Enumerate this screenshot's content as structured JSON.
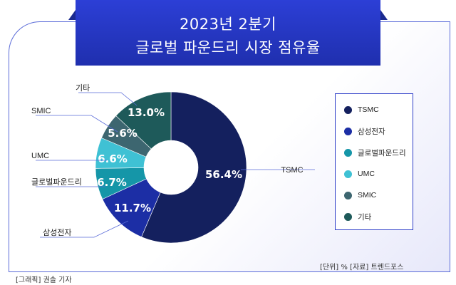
{
  "header": {
    "title_line1": "2023년 2분기",
    "title_line2": "글로벌 파운드리 시장 점유율"
  },
  "chart_data": {
    "type": "pie",
    "categories": [
      "TSMC",
      "삼성전자",
      "글로벌파운드리",
      "UMC",
      "SMIC",
      "기타"
    ],
    "values": [
      56.4,
      11.7,
      6.7,
      6.6,
      5.6,
      13.0
    ],
    "value_labels": [
      "56.4%",
      "11.7%",
      "6.7%",
      "6.6%",
      "5.6%",
      "13.0%"
    ],
    "colors": [
      "#14205e",
      "#1c2ea5",
      "#1596a8",
      "#3fc1d4",
      "#3d6670",
      "#1e5a5a"
    ],
    "donut": true,
    "legend_position": "right"
  },
  "legend": {
    "items": [
      {
        "label": "TSMC",
        "color": "#14205e"
      },
      {
        "label": "삼성전자",
        "color": "#1c2ea5"
      },
      {
        "label": "글로벌파운드리",
        "color": "#1596a8"
      },
      {
        "label": "UMC",
        "color": "#3fc1d4"
      },
      {
        "label": "SMIC",
        "color": "#3d6670"
      },
      {
        "label": "기타",
        "color": "#1e5a5a"
      }
    ]
  },
  "footer": {
    "unit_note": "[단위] %  [자료] 트렌드포스",
    "credit": "[그래픽] 권솔 기자"
  }
}
